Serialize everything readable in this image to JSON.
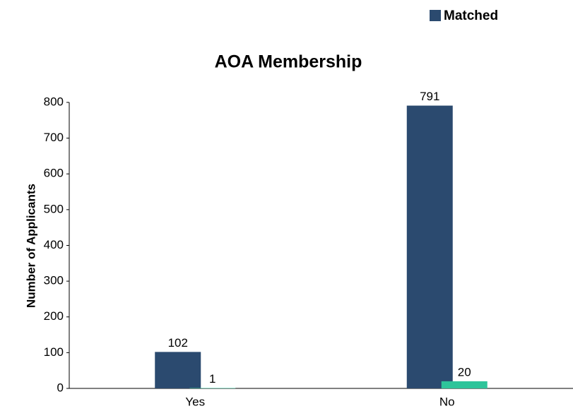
{
  "chart_data": {
    "type": "bar",
    "title": "AOA Membership",
    "ylabel": "Number of Applicants",
    "categories": [
      "Yes",
      "No"
    ],
    "series": [
      {
        "name": "Matched",
        "color": "#2b4a6f",
        "values": [
          102,
          791
        ]
      },
      {
        "color": "#2ec49a",
        "values": [
          1,
          20
        ]
      }
    ],
    "ylim": [
      0,
      800
    ],
    "yticks": [
      0,
      100,
      200,
      300,
      400,
      500,
      600,
      700,
      800
    ],
    "legend": "top-right"
  }
}
